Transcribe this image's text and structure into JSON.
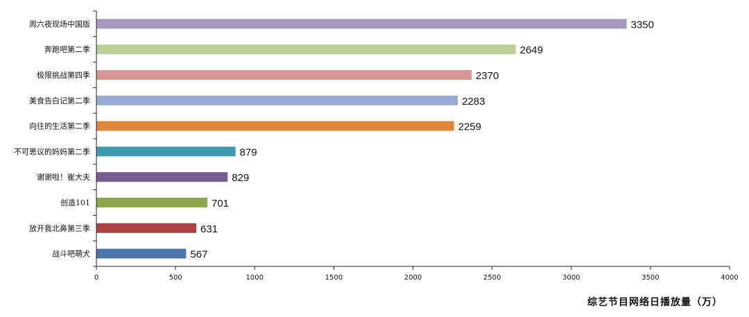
{
  "chart_data": {
    "type": "bar",
    "orientation": "horizontal",
    "categories": [
      "周六夜现场中国版",
      "奔跑吧第二季",
      "极限挑战第四季",
      "美食告白记第二季",
      "向往的生活第二季",
      "不可思议的妈妈第二季",
      "谢谢啦！崔大夫",
      "创造101",
      "放开我北鼻第三季",
      "战斗吧萌犬"
    ],
    "values": [
      3350,
      2649,
      2370,
      2283,
      2259,
      879,
      829,
      701,
      631,
      567
    ],
    "value_labels": [
      "3350",
      "2649",
      "2370",
      "2283",
      "2259",
      "879",
      "829",
      "701",
      "631",
      "567"
    ],
    "colors": [
      "#a49abf",
      "#bccf98",
      "#d49594",
      "#97acd4",
      "#e0873e",
      "#3f9bae",
      "#745f90",
      "#8ea74f",
      "#ad4444",
      "#4a76ae"
    ],
    "xlabel": "综艺节目网络日播放量（万）",
    "xlim": [
      0,
      4000
    ],
    "xticks": [
      "0",
      "500",
      "1000",
      "1500",
      "2000",
      "2500",
      "3000",
      "3500",
      "4000"
    ],
    "grid": false,
    "legend": "none"
  }
}
